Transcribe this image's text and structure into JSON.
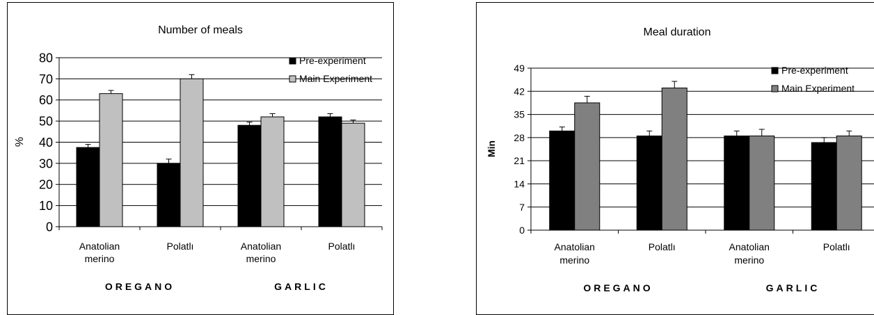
{
  "chart_data": [
    {
      "type": "bar",
      "title": "Number of meals",
      "ylabel": "%",
      "xlabel": "",
      "ylim": [
        0,
        80
      ],
      "yticks": [
        0,
        10,
        20,
        30,
        40,
        50,
        60,
        70,
        80
      ],
      "grid": true,
      "legend_position": "top-right",
      "categories": [
        [
          "Anatolian",
          "merino"
        ],
        [
          "Polatlı"
        ],
        [
          "Anatolian",
          "merino"
        ],
        [
          "Polatlı"
        ]
      ],
      "groups": [
        {
          "label": "OREGANO",
          "span": [
            0,
            1
          ]
        },
        {
          "label": "GARLIC",
          "span": [
            2,
            3
          ]
        }
      ],
      "series": [
        {
          "name": "Pre-experiment",
          "color": "#000000",
          "values": [
            37.5,
            30,
            48,
            52
          ],
          "errors": [
            1.5,
            2,
            1.5,
            1.5
          ]
        },
        {
          "name": "Main Experiment",
          "color": "#c0c0c0",
          "values": [
            63,
            70,
            52,
            49
          ],
          "errors": [
            1.5,
            2,
            1.5,
            1.5
          ]
        }
      ]
    },
    {
      "type": "bar",
      "title": "Meal duration",
      "ylabel": "Min",
      "xlabel": "",
      "ylim": [
        0,
        49
      ],
      "yticks": [
        0,
        7,
        14,
        21,
        28,
        35,
        42,
        49
      ],
      "grid": true,
      "legend_position": "top-right",
      "categories": [
        [
          "Anatolian",
          "merino"
        ],
        [
          "Polatlı"
        ],
        [
          "Anatolian",
          "merino"
        ],
        [
          "Polatlı"
        ]
      ],
      "groups": [
        {
          "label": "OREGANO",
          "span": [
            0,
            1
          ]
        },
        {
          "label": "GARLIC",
          "span": [
            2,
            3
          ]
        }
      ],
      "series": [
        {
          "name": "Pre-experiment",
          "color": "#000000",
          "values": [
            30,
            28.5,
            28.5,
            26.5
          ],
          "errors": [
            1.2,
            1.5,
            1.5,
            1.5
          ]
        },
        {
          "name": "Main Experiment",
          "color": "#808080",
          "values": [
            38.5,
            43,
            28.5,
            28.5
          ],
          "errors": [
            2,
            2,
            2,
            1.5
          ]
        }
      ]
    }
  ]
}
